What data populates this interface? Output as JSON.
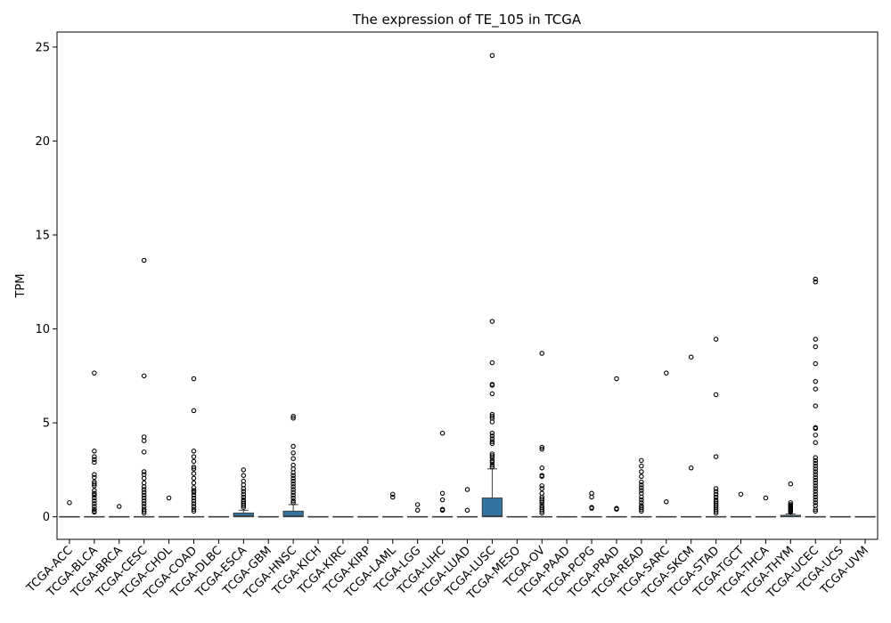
{
  "chart_data": {
    "type": "box",
    "title": "The expression of TE_105 in TCGA",
    "xlabel": "",
    "ylabel": "TPM",
    "ylim": [
      -1.2,
      25.8
    ],
    "yticks": [
      0,
      5,
      10,
      15,
      20,
      25
    ],
    "grid": false,
    "legend": "none",
    "box_color": "#3274a1",
    "categories": [
      "TCGA-ACC",
      "TCGA-BLCA",
      "TCGA-BRCA",
      "TCGA-CESC",
      "TCGA-CHOL",
      "TCGA-COAD",
      "TCGA-DLBC",
      "TCGA-ESCA",
      "TCGA-GBM",
      "TCGA-HNSC",
      "TCGA-KICH",
      "TCGA-KIRC",
      "TCGA-KIRP",
      "TCGA-LAML",
      "TCGA-LGG",
      "TCGA-LIHC",
      "TCGA-LUAD",
      "TCGA-LUSC",
      "TCGA-MESO",
      "TCGA-OV",
      "TCGA-PAAD",
      "TCGA-PCPG",
      "TCGA-PRAD",
      "TCGA-READ",
      "TCGA-SARC",
      "TCGA-SKCM",
      "TCGA-STAD",
      "TCGA-TGCT",
      "TCGA-THCA",
      "TCGA-THYM",
      "TCGA-UCEC",
      "TCGA-UCS",
      "TCGA-UVM"
    ],
    "boxes": [
      {
        "q1": 0,
        "median": 0,
        "q3": 0,
        "whisker_low": 0,
        "whisker_high": 0,
        "outliers": [
          0.75
        ]
      },
      {
        "q1": 0,
        "median": 0,
        "q3": 0,
        "whisker_low": 0,
        "whisker_high": 0,
        "outliers": [
          7.65,
          3.5,
          3.2,
          3.05,
          2.9,
          2.25,
          2.1,
          1.85,
          1.75,
          1.65,
          1.4,
          1.25,
          1.15,
          1.0,
          0.85,
          0.7,
          0.55,
          0.4,
          0.3,
          0.25
        ]
      },
      {
        "q1": 0,
        "median": 0,
        "q3": 0,
        "whisker_low": 0,
        "whisker_high": 0,
        "outliers": [
          0.55
        ]
      },
      {
        "q1": 0,
        "median": 0,
        "q3": 0,
        "whisker_low": 0,
        "whisker_high": 0,
        "outliers": [
          13.65,
          7.5,
          4.25,
          4.05,
          3.45,
          2.4,
          2.25,
          2.05,
          1.8,
          1.6,
          1.45,
          1.3,
          1.15,
          1.0,
          0.85,
          0.7,
          0.55,
          0.4,
          0.3,
          0.2
        ]
      },
      {
        "q1": 0,
        "median": 0,
        "q3": 0,
        "whisker_low": 0,
        "whisker_high": 0,
        "outliers": [
          1.0
        ]
      },
      {
        "q1": 0,
        "median": 0,
        "q3": 0,
        "whisker_low": 0,
        "whisker_high": 0,
        "outliers": [
          7.35,
          5.65,
          3.5,
          3.2,
          2.95,
          2.65,
          2.55,
          2.3,
          2.05,
          1.8,
          1.55,
          1.4,
          1.3,
          1.15,
          1.0,
          0.85,
          0.7,
          0.55,
          0.4,
          0.3
        ]
      },
      {
        "q1": 0,
        "median": 0,
        "q3": 0,
        "whisker_low": 0,
        "whisker_high": 0,
        "outliers": []
      },
      {
        "q1": 0,
        "median": 0.05,
        "q3": 0.2,
        "whisker_low": 0,
        "whisker_high": 0.35,
        "outliers": [
          2.5,
          2.2,
          1.9,
          1.7,
          1.5,
          1.35,
          1.2,
          1.05,
          0.9,
          0.8,
          0.7,
          0.6,
          0.5
        ]
      },
      {
        "q1": 0,
        "median": 0,
        "q3": 0,
        "whisker_low": 0,
        "whisker_high": 0,
        "outliers": []
      },
      {
        "q1": 0,
        "median": 0.05,
        "q3": 0.3,
        "whisker_low": 0,
        "whisker_high": 0.65,
        "outliers": [
          5.35,
          5.25,
          3.75,
          3.4,
          3.1,
          2.75,
          2.55,
          2.35,
          2.2,
          2.05,
          1.9,
          1.75,
          1.6,
          1.45,
          1.3,
          1.15,
          1.0,
          0.85,
          0.75
        ]
      },
      {
        "q1": 0,
        "median": 0,
        "q3": 0,
        "whisker_low": 0,
        "whisker_high": 0,
        "outliers": []
      },
      {
        "q1": 0,
        "median": 0,
        "q3": 0,
        "whisker_low": 0,
        "whisker_high": 0,
        "outliers": []
      },
      {
        "q1": 0,
        "median": 0,
        "q3": 0,
        "whisker_low": 0,
        "whisker_high": 0,
        "outliers": []
      },
      {
        "q1": 0,
        "median": 0,
        "q3": 0,
        "whisker_low": 0,
        "whisker_high": 0,
        "outliers": [
          1.2,
          1.05
        ]
      },
      {
        "q1": 0,
        "median": 0,
        "q3": 0,
        "whisker_low": 0,
        "whisker_high": 0,
        "outliers": [
          0.65,
          0.35
        ]
      },
      {
        "q1": 0,
        "median": 0,
        "q3": 0,
        "whisker_low": 0,
        "whisker_high": 0,
        "outliers": [
          4.45,
          1.25,
          0.9,
          0.4,
          0.35
        ]
      },
      {
        "q1": 0,
        "median": 0,
        "q3": 0,
        "whisker_low": 0,
        "whisker_high": 0,
        "outliers": [
          1.45,
          0.35
        ]
      },
      {
        "q1": 0,
        "median": 0.05,
        "q3": 1.0,
        "whisker_low": 0,
        "whisker_high": 2.55,
        "outliers": [
          24.55,
          10.4,
          8.2,
          7.05,
          7.0,
          6.55,
          5.45,
          5.35,
          5.25,
          5.05,
          4.45,
          4.3,
          4.15,
          4.0,
          3.9,
          3.35,
          3.25,
          3.15,
          3.0,
          2.9,
          2.75,
          2.65
        ]
      },
      {
        "q1": 0,
        "median": 0,
        "q3": 0,
        "whisker_low": 0,
        "whisker_high": 0,
        "outliers": []
      },
      {
        "q1": 0,
        "median": 0,
        "q3": 0,
        "whisker_low": 0,
        "whisker_high": 0,
        "outliers": [
          8.7,
          3.7,
          3.6,
          2.6,
          2.2,
          2.15,
          1.65,
          1.5,
          1.25,
          1.05,
          0.95,
          0.85,
          0.75,
          0.6,
          0.5,
          0.4,
          0.3,
          0.2
        ]
      },
      {
        "q1": 0,
        "median": 0,
        "q3": 0,
        "whisker_low": 0,
        "whisker_high": 0,
        "outliers": []
      },
      {
        "q1": 0,
        "median": 0,
        "q3": 0,
        "whisker_low": 0,
        "whisker_high": 0,
        "outliers": [
          1.25,
          1.05,
          0.5,
          0.45
        ]
      },
      {
        "q1": 0,
        "median": 0,
        "q3": 0,
        "whisker_low": 0,
        "whisker_high": 0,
        "outliers": [
          7.35,
          0.45,
          0.4
        ]
      },
      {
        "q1": 0,
        "median": 0,
        "q3": 0,
        "whisker_low": 0,
        "whisker_high": 0,
        "outliers": [
          3.0,
          2.7,
          2.4,
          2.15,
          1.85,
          1.7,
          1.55,
          1.4,
          1.25,
          1.05,
          0.9,
          0.75,
          0.6,
          0.5,
          0.4,
          0.3
        ]
      },
      {
        "q1": 0,
        "median": 0,
        "q3": 0,
        "whisker_low": 0,
        "whisker_high": 0,
        "outliers": [
          7.65,
          0.8
        ]
      },
      {
        "q1": 0,
        "median": 0,
        "q3": 0,
        "whisker_low": 0,
        "whisker_high": 0,
        "outliers": [
          8.5,
          2.6
        ]
      },
      {
        "q1": 0,
        "median": 0,
        "q3": 0,
        "whisker_low": 0,
        "whisker_high": 0,
        "outliers": [
          9.45,
          6.5,
          3.2,
          1.5,
          1.35,
          1.2,
          1.05,
          0.9,
          0.8,
          0.7,
          0.6,
          0.5,
          0.4,
          0.3,
          0.2
        ]
      },
      {
        "q1": 0,
        "median": 0,
        "q3": 0,
        "whisker_low": 0,
        "whisker_high": 0,
        "outliers": [
          1.2
        ]
      },
      {
        "q1": 0,
        "median": 0,
        "q3": 0,
        "whisker_low": 0,
        "whisker_high": 0,
        "outliers": [
          1.0
        ]
      },
      {
        "q1": 0,
        "median": 0.02,
        "q3": 0.08,
        "whisker_low": 0,
        "whisker_high": 0.15,
        "outliers": [
          1.75,
          0.75,
          0.65,
          0.6,
          0.55,
          0.5,
          0.45,
          0.4,
          0.35,
          0.3,
          0.25
        ]
      },
      {
        "q1": 0,
        "median": 0,
        "q3": 0,
        "whisker_low": 0,
        "whisker_high": 0,
        "outliers": [
          12.65,
          12.5,
          9.45,
          9.05,
          8.15,
          7.2,
          6.8,
          5.9,
          4.75,
          4.7,
          4.35,
          3.95,
          3.15,
          3.0,
          2.85,
          2.7,
          2.55,
          2.4,
          2.25,
          2.1,
          1.95,
          1.8,
          1.65,
          1.5,
          1.35,
          1.2,
          1.05,
          0.9,
          0.75,
          0.6,
          0.4,
          0.3
        ]
      },
      {
        "q1": 0,
        "median": 0,
        "q3": 0,
        "whisker_low": 0,
        "whisker_high": 0,
        "outliers": []
      },
      {
        "q1": 0,
        "median": 0,
        "q3": 0,
        "whisker_low": 0,
        "whisker_high": 0,
        "outliers": []
      }
    ]
  }
}
